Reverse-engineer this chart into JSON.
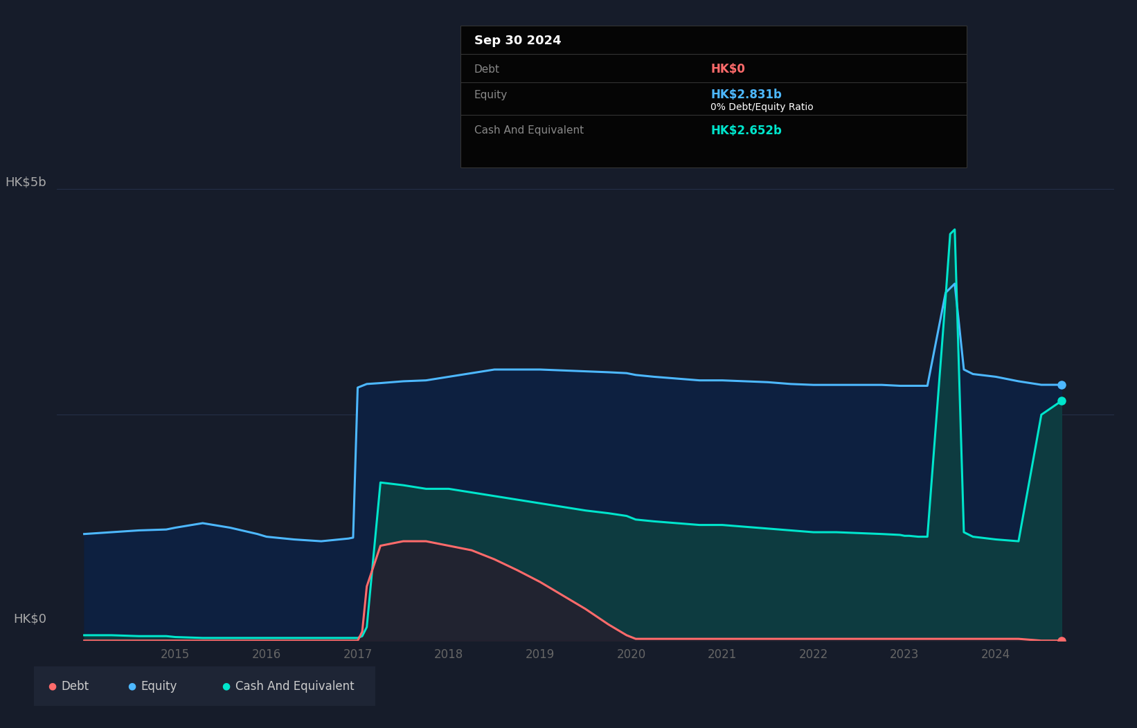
{
  "bg_color": "#161c2a",
  "plot_bg_color": "#161c2a",
  "grid_color": "#2a3550",
  "debt_color": "#ff6b6b",
  "equity_color": "#4db8ff",
  "cash_color": "#00e5cc",
  "equity_fill_color": "#0d2040",
  "cash_fill_color": "#0d4040",
  "debt_fill_color": "#2a1a2a",
  "legend_bg": "#1e2535",
  "tooltip_title": "Sep 30 2024",
  "tooltip_debt_label": "Debt",
  "tooltip_debt_value": "HK$0",
  "tooltip_equity_label": "Equity",
  "tooltip_equity_value": "HK$2.831b",
  "tooltip_ratio_text": "0% Debt/Equity Ratio",
  "tooltip_cash_label": "Cash And Equivalent",
  "tooltip_cash_value": "HK$2.652b",
  "y_label_5b": "HK$5b",
  "y_label_0": "HK$0",
  "ylim": [
    0,
    5.8
  ],
  "xlim_min": 2013.7,
  "xlim_max": 2025.3,
  "years": [
    2014.0,
    2014.3,
    2014.6,
    2014.9,
    2015.0,
    2015.3,
    2015.6,
    2015.9,
    2016.0,
    2016.3,
    2016.6,
    2016.9,
    2016.95,
    2017.0,
    2017.05,
    2017.1,
    2017.25,
    2017.5,
    2017.75,
    2018.0,
    2018.25,
    2018.5,
    2018.75,
    2019.0,
    2019.25,
    2019.5,
    2019.75,
    2019.95,
    2020.0,
    2020.05,
    2020.25,
    2020.5,
    2020.75,
    2021.0,
    2021.25,
    2021.5,
    2021.75,
    2022.0,
    2022.25,
    2022.5,
    2022.75,
    2022.95,
    2023.0,
    2023.05,
    2023.15,
    2023.25,
    2023.45,
    2023.5,
    2023.55,
    2023.65,
    2023.75,
    2024.0,
    2024.25,
    2024.5,
    2024.72
  ],
  "equity": [
    1.18,
    1.2,
    1.22,
    1.23,
    1.25,
    1.3,
    1.25,
    1.18,
    1.15,
    1.12,
    1.1,
    1.13,
    1.14,
    2.8,
    2.82,
    2.84,
    2.85,
    2.87,
    2.88,
    2.92,
    2.96,
    3.0,
    3.0,
    3.0,
    2.99,
    2.98,
    2.97,
    2.96,
    2.95,
    2.94,
    2.92,
    2.9,
    2.88,
    2.88,
    2.87,
    2.86,
    2.84,
    2.83,
    2.83,
    2.83,
    2.83,
    2.82,
    2.82,
    2.82,
    2.82,
    2.82,
    3.85,
    3.9,
    3.95,
    3.0,
    2.95,
    2.92,
    2.87,
    2.831,
    2.831
  ],
  "debt": [
    0.0,
    0.0,
    0.0,
    0.0,
    0.0,
    0.0,
    0.0,
    0.0,
    0.0,
    0.0,
    0.0,
    0.0,
    0.0,
    0.0,
    0.1,
    0.6,
    1.05,
    1.1,
    1.1,
    1.05,
    1.0,
    0.9,
    0.78,
    0.65,
    0.5,
    0.35,
    0.18,
    0.06,
    0.04,
    0.02,
    0.02,
    0.02,
    0.02,
    0.02,
    0.02,
    0.02,
    0.02,
    0.02,
    0.02,
    0.02,
    0.02,
    0.02,
    0.02,
    0.02,
    0.02,
    0.02,
    0.02,
    0.02,
    0.02,
    0.02,
    0.02,
    0.02,
    0.02,
    0.0,
    0.0
  ],
  "cash": [
    0.06,
    0.06,
    0.05,
    0.05,
    0.04,
    0.03,
    0.03,
    0.03,
    0.03,
    0.03,
    0.03,
    0.03,
    0.03,
    0.03,
    0.05,
    0.15,
    1.75,
    1.72,
    1.68,
    1.68,
    1.64,
    1.6,
    1.56,
    1.52,
    1.48,
    1.44,
    1.41,
    1.38,
    1.36,
    1.34,
    1.32,
    1.3,
    1.28,
    1.28,
    1.26,
    1.24,
    1.22,
    1.2,
    1.2,
    1.19,
    1.18,
    1.17,
    1.16,
    1.16,
    1.15,
    1.15,
    3.8,
    4.5,
    4.55,
    1.2,
    1.15,
    1.12,
    1.1,
    2.5,
    2.652
  ],
  "x_ticks": [
    2015,
    2016,
    2017,
    2018,
    2019,
    2020,
    2021,
    2022,
    2023,
    2024
  ],
  "x_tick_labels": [
    "2015",
    "2016",
    "2017",
    "2018",
    "2019",
    "2020",
    "2021",
    "2022",
    "2023",
    "2024"
  ]
}
